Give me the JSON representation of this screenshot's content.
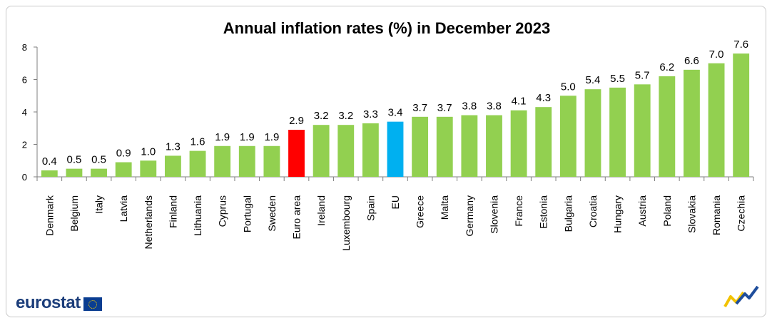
{
  "chart_data": {
    "type": "bar",
    "title": "Annual inflation rates (%) in December 2023",
    "xlabel": "",
    "ylabel": "",
    "ylim": [
      0,
      8
    ],
    "yticks": [
      0,
      2,
      4,
      6,
      8
    ],
    "grid": false,
    "categories": [
      "Denmark",
      "Belgium",
      "Italy",
      "Latvia",
      "Netherlands",
      "Finland",
      "Lithuania",
      "Cyprus",
      "Portugal",
      "Sweden",
      "Euro area",
      "Ireland",
      "Luxembourg",
      "Spain",
      "EU",
      "Greece",
      "Malta",
      "Germany",
      "Slovenia",
      "France",
      "Estonia",
      "Bulgaria",
      "Croatia",
      "Hungary",
      "Austria",
      "Poland",
      "Slovakia",
      "Romania",
      "Czechia"
    ],
    "values": [
      0.4,
      0.5,
      0.5,
      0.9,
      1.0,
      1.3,
      1.6,
      1.9,
      1.9,
      1.9,
      2.9,
      3.2,
      3.2,
      3.3,
      3.4,
      3.7,
      3.7,
      3.8,
      3.8,
      4.1,
      4.3,
      5.0,
      5.4,
      5.5,
      5.7,
      6.2,
      6.6,
      7.0,
      7.6
    ],
    "value_labels": [
      "0.4",
      "0.5",
      "0.5",
      "0.9",
      "1.0",
      "1.3",
      "1.6",
      "1.9",
      "1.9",
      "1.9",
      "2.9",
      "3.2",
      "3.2",
      "3.3",
      "3.4",
      "3.7",
      "3.7",
      "3.8",
      "3.8",
      "4.1",
      "4.3",
      "5.0",
      "5.4",
      "5.5",
      "5.7",
      "6.2",
      "6.6",
      "7.0",
      "7.6"
    ],
    "colors": {
      "default": "#92d050",
      "Euro area": "#ff0000",
      "EU": "#00b0f0"
    }
  },
  "footer": {
    "brand": "eurostat"
  }
}
